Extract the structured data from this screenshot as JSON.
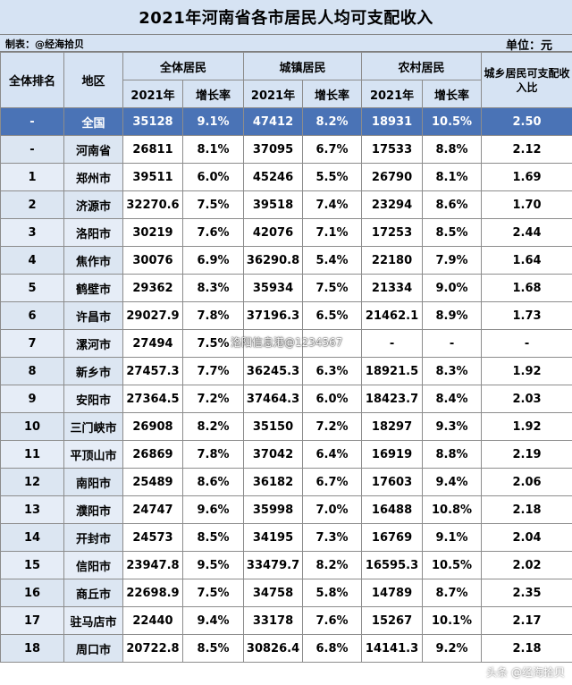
{
  "title": "2021年河南省各市居民人均可支配收入",
  "maker": "制表：@经海拾贝",
  "unit": "单位：元",
  "headers": {
    "rank": "全体排名",
    "region": "地区",
    "all": "全体居民",
    "urban": "城镇居民",
    "rural": "农村居民",
    "ratio": "城乡居民可支配收入比",
    "year": "2021年",
    "growth": "增长率"
  },
  "national": {
    "rank": "-",
    "region": "全国",
    "all": "35128",
    "all_g": "9.1%",
    "urban": "47412",
    "urban_g": "8.2%",
    "rural": "18931",
    "rural_g": "10.5%",
    "ratio": "2.50"
  },
  "rows": [
    {
      "rank": "-",
      "region": "河南省",
      "all": "26811",
      "all_g": "8.1%",
      "urban": "37095",
      "urban_g": "6.7%",
      "rural": "17533",
      "rural_g": "8.8%",
      "ratio": "2.12"
    },
    {
      "rank": "1",
      "region": "郑州市",
      "all": "39511",
      "all_g": "6.0%",
      "urban": "45246",
      "urban_g": "5.5%",
      "rural": "26790",
      "rural_g": "8.1%",
      "ratio": "1.69"
    },
    {
      "rank": "2",
      "region": "济源市",
      "all": "32270.6",
      "all_g": "7.5%",
      "urban": "39518",
      "urban_g": "7.4%",
      "rural": "23294",
      "rural_g": "8.6%",
      "ratio": "1.70"
    },
    {
      "rank": "3",
      "region": "洛阳市",
      "all": "30219",
      "all_g": "7.6%",
      "urban": "42076",
      "urban_g": "7.1%",
      "rural": "17253",
      "rural_g": "8.5%",
      "ratio": "2.44"
    },
    {
      "rank": "4",
      "region": "焦作市",
      "all": "30076",
      "all_g": "6.9%",
      "urban": "36290.8",
      "urban_g": "5.4%",
      "rural": "22180",
      "rural_g": "7.9%",
      "ratio": "1.64"
    },
    {
      "rank": "5",
      "region": "鹤壁市",
      "all": "29362",
      "all_g": "8.3%",
      "urban": "35934",
      "urban_g": "7.5%",
      "rural": "21334",
      "rural_g": "9.0%",
      "ratio": "1.68"
    },
    {
      "rank": "6",
      "region": "许昌市",
      "all": "29027.9",
      "all_g": "7.8%",
      "urban": "37196.3",
      "urban_g": "6.5%",
      "rural": "21462.1",
      "rural_g": "8.9%",
      "ratio": "1.73"
    },
    {
      "rank": "7",
      "region": "漯河市",
      "all": "27494",
      "all_g": "7.5%",
      "urban": "",
      "urban_g": "",
      "rural": "-",
      "rural_g": "-",
      "ratio": "-"
    },
    {
      "rank": "8",
      "region": "新乡市",
      "all": "27457.3",
      "all_g": "7.7%",
      "urban": "36245.3",
      "urban_g": "6.3%",
      "rural": "18921.5",
      "rural_g": "8.3%",
      "ratio": "1.92"
    },
    {
      "rank": "9",
      "region": "安阳市",
      "all": "27364.5",
      "all_g": "7.2%",
      "urban": "37464.3",
      "urban_g": "6.0%",
      "rural": "18423.7",
      "rural_g": "8.4%",
      "ratio": "2.03"
    },
    {
      "rank": "10",
      "region": "三门峡市",
      "all": "26908",
      "all_g": "8.2%",
      "urban": "35150",
      "urban_g": "7.2%",
      "rural": "18297",
      "rural_g": "9.3%",
      "ratio": "1.92"
    },
    {
      "rank": "11",
      "region": "平顶山市",
      "all": "26869",
      "all_g": "7.8%",
      "urban": "37042",
      "urban_g": "6.4%",
      "rural": "16919",
      "rural_g": "8.8%",
      "ratio": "2.19"
    },
    {
      "rank": "12",
      "region": "南阳市",
      "all": "25489",
      "all_g": "8.6%",
      "urban": "36182",
      "urban_g": "6.7%",
      "rural": "17603",
      "rural_g": "9.4%",
      "ratio": "2.06"
    },
    {
      "rank": "13",
      "region": "濮阳市",
      "all": "24747",
      "all_g": "9.6%",
      "urban": "35998",
      "urban_g": "7.0%",
      "rural": "16488",
      "rural_g": "10.8%",
      "ratio": "2.18"
    },
    {
      "rank": "14",
      "region": "开封市",
      "all": "24573",
      "all_g": "8.5%",
      "urban": "34195",
      "urban_g": "7.3%",
      "rural": "16769",
      "rural_g": "9.1%",
      "ratio": "2.04"
    },
    {
      "rank": "15",
      "region": "信阳市",
      "all": "23947.8",
      "all_g": "9.5%",
      "urban": "33479.7",
      "urban_g": "8.2%",
      "rural": "16595.3",
      "rural_g": "10.5%",
      "ratio": "2.02"
    },
    {
      "rank": "16",
      "region": "商丘市",
      "all": "22698.9",
      "all_g": "7.5%",
      "urban": "34758",
      "urban_g": "5.8%",
      "rural": "14789",
      "rural_g": "8.7%",
      "ratio": "2.35"
    },
    {
      "rank": "17",
      "region": "驻马店市",
      "all": "22440",
      "all_g": "9.4%",
      "urban": "33178",
      "urban_g": "7.6%",
      "rural": "15267",
      "rural_g": "10.1%",
      "ratio": "2.17"
    },
    {
      "rank": "18",
      "region": "周口市",
      "all": "20722.8",
      "all_g": "8.5%",
      "urban": "30826.4",
      "urban_g": "6.8%",
      "rural": "14141.3",
      "rural_g": "9.2%",
      "ratio": "2.18"
    }
  ],
  "overlay_watermark": "洛阳信息港@1234567",
  "corner_watermark": "头条 @经海拾贝"
}
